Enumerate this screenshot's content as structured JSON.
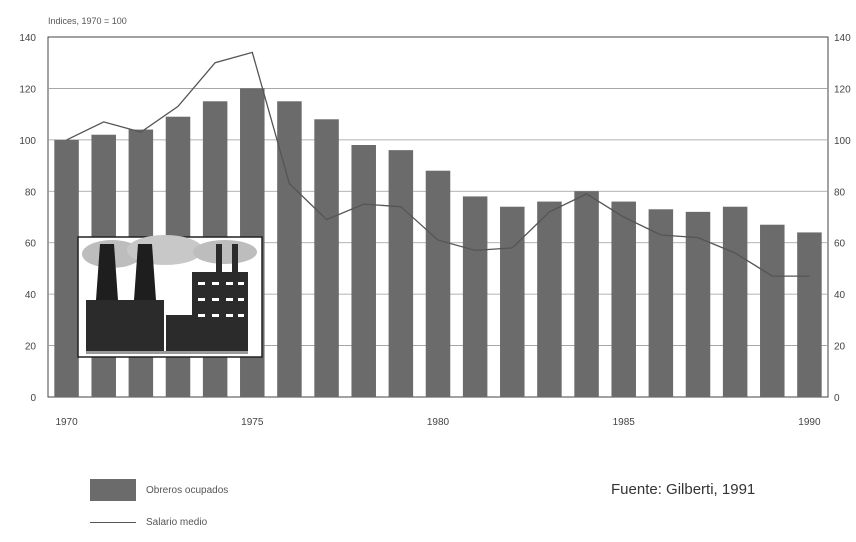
{
  "chart_data": {
    "type": "bar",
    "unit_label": "Indices, 1970 = 100",
    "x": [
      1970,
      1971,
      1972,
      1973,
      1974,
      1975,
      1976,
      1977,
      1978,
      1979,
      1980,
      1981,
      1982,
      1983,
      1984,
      1985,
      1986,
      1987,
      1988,
      1989,
      1990
    ],
    "x_tick_labels": [
      "1970",
      "1975",
      "1980",
      "1985",
      "1990"
    ],
    "x_tick_years": [
      1970,
      1975,
      1980,
      1985,
      1990
    ],
    "y_ticks": [
      0,
      20,
      40,
      60,
      80,
      100,
      120,
      140
    ],
    "ylim": [
      0,
      140
    ],
    "grid": true,
    "series": [
      {
        "name": "Obreros ocupados",
        "type": "bar",
        "color": "#6b6b6b",
        "values": [
          100,
          102,
          104,
          109,
          115,
          120,
          115,
          108,
          98,
          96,
          88,
          78,
          74,
          76,
          80,
          76,
          73,
          72,
          74,
          67,
          64
        ]
      },
      {
        "name": "Salario medio",
        "type": "line",
        "color": "#555555",
        "values": [
          100,
          107,
          103,
          113,
          130,
          134,
          83,
          69,
          75,
          74,
          61,
          57,
          58,
          72,
          79,
          70,
          63,
          62,
          56,
          47,
          47
        ]
      }
    ],
    "legend_position": "bottom-left",
    "source": "Fuente: Gilberti, 1991"
  }
}
